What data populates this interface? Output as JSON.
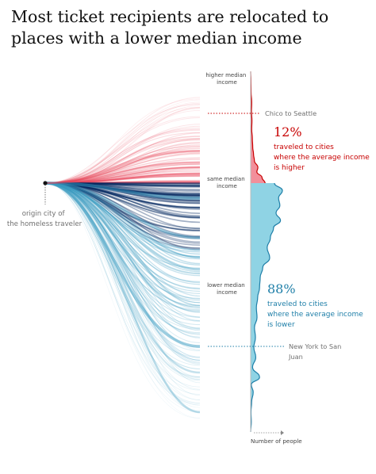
{
  "title": "Most ticket recipients are relocated to places with a lower median income",
  "colors": {
    "higher": "#c70000",
    "higher_fill": "#f28f9b",
    "lower": "#1f7fa8",
    "lower_fill": "#8fd3e4",
    "lines_dark": "#052962",
    "lines_red": "#e8485c",
    "lines_blue": "#3a9bc1",
    "text": "#121212",
    "muted": "#707070"
  },
  "chart_data": {
    "type": "area",
    "title": "Most ticket recipients are relocated to places with a lower median income",
    "y_axis_labels": {
      "top": "higher median income",
      "middle": "same median income",
      "bottom": "lower median income"
    },
    "xlabel": "Number of people",
    "origin_label": "origin city of the homeless traveler",
    "y_scale": "relative median income (destination vs origin), top = higher, bottom = lower",
    "series": [
      {
        "name": "higher",
        "share_percent": 12,
        "description": "traveled to cities where the average income is higher",
        "distribution_points": [
          [
            0.0,
            0.0
          ],
          [
            0.08,
            0.01
          ],
          [
            0.18,
            0.02
          ],
          [
            0.28,
            0.05
          ],
          [
            0.36,
            0.04
          ],
          [
            0.44,
            0.06
          ],
          [
            0.52,
            0.05
          ],
          [
            0.6,
            0.08
          ],
          [
            0.68,
            0.1
          ],
          [
            0.74,
            0.14
          ],
          [
            0.8,
            0.18
          ],
          [
            0.86,
            0.35
          ],
          [
            0.9,
            0.3
          ],
          [
            0.95,
            0.55
          ],
          [
            1.0,
            0.7
          ]
        ]
      },
      {
        "name": "lower",
        "share_percent": 88,
        "description": "traveled to cities where the average income is lower",
        "distribution_points": [
          [
            0.0,
            0.75
          ],
          [
            0.03,
            1.0
          ],
          [
            0.06,
            0.88
          ],
          [
            0.09,
            0.92
          ],
          [
            0.12,
            0.8
          ],
          [
            0.15,
            0.94
          ],
          [
            0.18,
            0.72
          ],
          [
            0.22,
            0.62
          ],
          [
            0.26,
            0.52
          ],
          [
            0.3,
            0.6
          ],
          [
            0.34,
            0.38
          ],
          [
            0.38,
            0.3
          ],
          [
            0.42,
            0.28
          ],
          [
            0.46,
            0.22
          ],
          [
            0.5,
            0.18
          ],
          [
            0.54,
            0.2
          ],
          [
            0.58,
            0.12
          ],
          [
            0.62,
            0.15
          ],
          [
            0.66,
            0.1
          ],
          [
            0.7,
            0.16
          ],
          [
            0.74,
            0.06
          ],
          [
            0.78,
            0.28
          ],
          [
            0.81,
            0.02
          ],
          [
            0.84,
            0.08
          ],
          [
            0.88,
            0.03
          ],
          [
            0.92,
            0.01
          ],
          [
            0.96,
            0.02
          ],
          [
            1.0,
            0.0
          ]
        ]
      }
    ],
    "annotations": [
      {
        "name": "chico-to-seattle",
        "text": "Chico to Seattle",
        "level": 0.82
      },
      {
        "name": "new-york-to-san-juan",
        "text": "New York to San Juan",
        "level": -0.62
      }
    ]
  }
}
